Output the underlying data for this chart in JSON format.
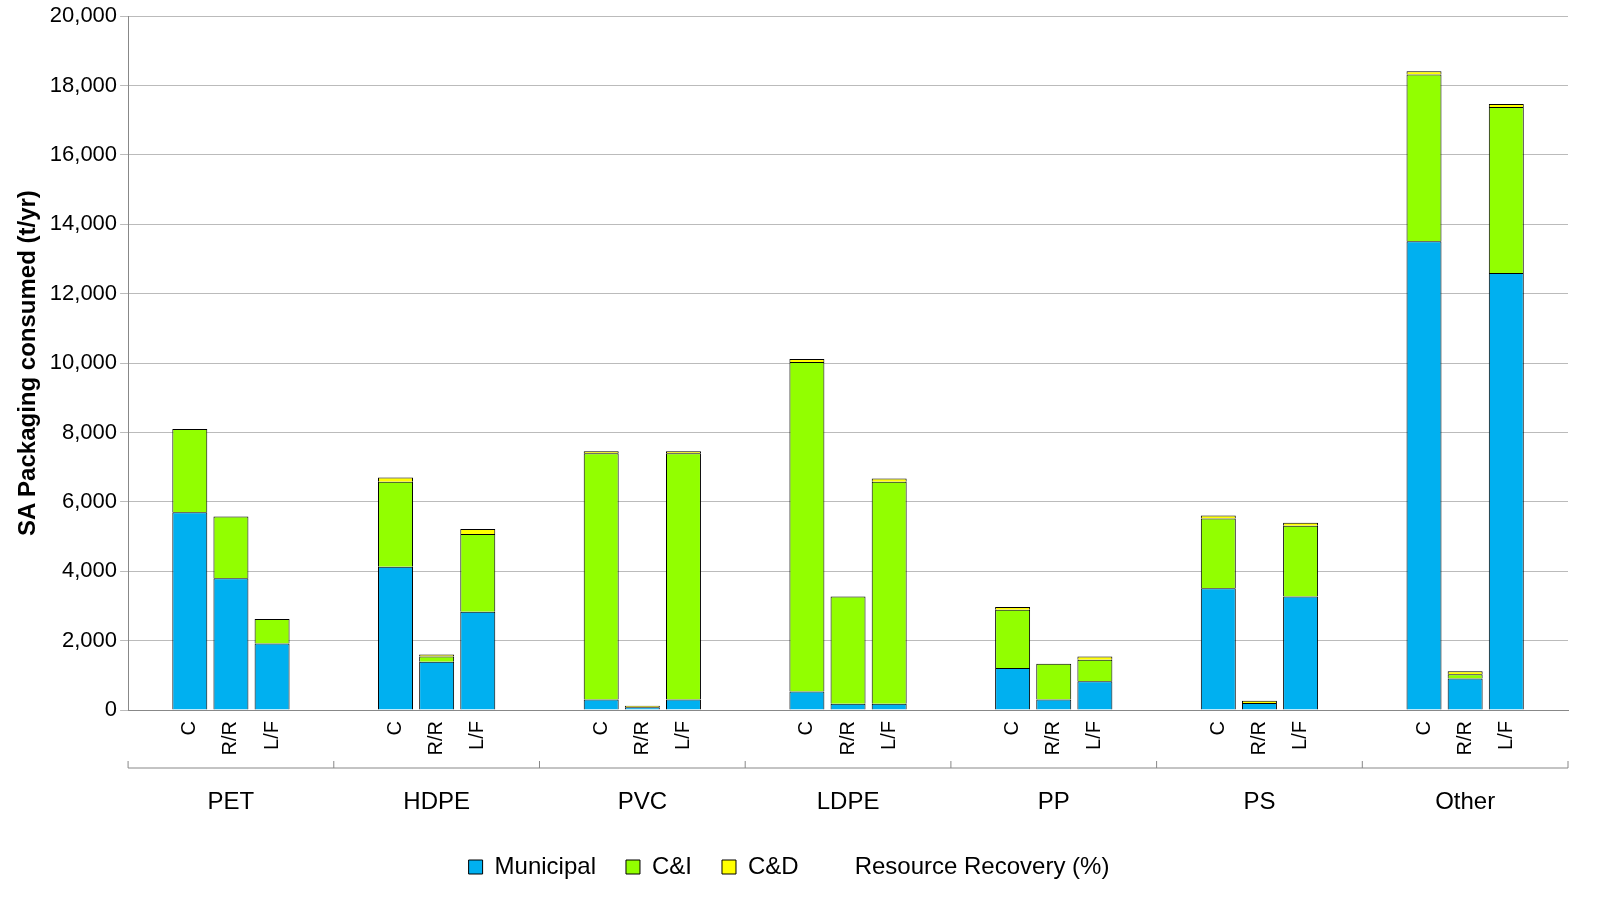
{
  "chart_data": {
    "type": "bar",
    "stacked": true,
    "ylabel": "SA Packaging consumed (t/yr)",
    "categories": [
      null,
      "C",
      "R/R",
      "L/F",
      null,
      null,
      "C",
      "R/R",
      "L/F",
      null,
      null,
      "C",
      "R/R",
      "L/F",
      null,
      null,
      "C",
      "R/R",
      "L/F",
      null,
      null,
      "C",
      "R/R",
      "L/F",
      null,
      null,
      "C",
      "R/R",
      "L/F",
      null,
      null,
      "C",
      "R/R",
      "L/F",
      null
    ],
    "series": [
      {
        "name": "Municipal",
        "color": "#00b0f0",
        "values": [
          null,
          5700,
          3800,
          1920,
          null,
          null,
          4130,
          1390,
          2830,
          null,
          null,
          300,
          80,
          300,
          null,
          null,
          530,
          180,
          180,
          null,
          null,
          1210,
          300,
          830,
          null,
          null,
          3510,
          200,
          3270,
          null,
          null,
          13510,
          910,
          12600,
          null
        ]
      },
      {
        "name": "C&I",
        "color": "#92ff00",
        "values": [
          null,
          2400,
          1780,
          700,
          null,
          null,
          2450,
          150,
          2240,
          null,
          null,
          7100,
          0,
          7100,
          null,
          null,
          9500,
          3090,
          6400,
          null,
          null,
          1680,
          1030,
          620,
          null,
          null,
          2010,
          0,
          2040,
          null,
          null,
          4810,
          120,
          4780,
          null
        ]
      },
      {
        "name": "C&D",
        "color": "#ffff00",
        "values": [
          null,
          0,
          0,
          0,
          null,
          null,
          120,
          60,
          150,
          null,
          null,
          60,
          40,
          60,
          null,
          null,
          90,
          0,
          90,
          null,
          null,
          80,
          0,
          90,
          null,
          null,
          90,
          70,
          90,
          null,
          null,
          90,
          90,
          90,
          null
        ]
      },
      {
        "name": "Resource Recovery (%)",
        "type": "line",
        "values": [
          null,
          null,
          null,
          null,
          null,
          null,
          null,
          null,
          null,
          null,
          null,
          null,
          null,
          null,
          null,
          null,
          null,
          null,
          null,
          null,
          null,
          null,
          null,
          null,
          null,
          null,
          null,
          null,
          null,
          null,
          null,
          null,
          null,
          null,
          null
        ]
      }
    ],
    "annotations": [
      "PET",
      "HDPE",
      "PVC",
      "LDPE",
      "PP",
      "PS",
      "Other"
    ],
    "ylim": [
      0,
      20000
    ],
    "yticks": [
      0,
      {
        "value": 2000,
        "label": "2,000"
      },
      {
        "value": 4000,
        "label": "4,000"
      },
      {
        "value": 6000,
        "label": "6,000"
      },
      {
        "value": 8000,
        "label": "8,000"
      },
      {
        "value": 10000,
        "label": "10,000"
      },
      {
        "value": 12000,
        "label": "12,000"
      },
      {
        "value": 14000,
        "label": "14,000"
      },
      {
        "value": 16000,
        "label": "16,000"
      },
      {
        "value": 18000,
        "label": "18,000"
      },
      {
        "value": 20000,
        "label": "20,000"
      }
    ],
    "grid": "y",
    "legend": "bottom"
  }
}
